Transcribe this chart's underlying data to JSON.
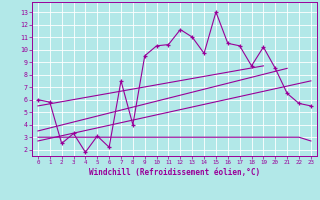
{
  "xlabel": "Windchill (Refroidissement éolien,°C)",
  "background_color": "#b2e8e8",
  "grid_color": "#c8e8e8",
  "line_color": "#990099",
  "x_ticks": [
    0,
    1,
    2,
    3,
    4,
    5,
    6,
    7,
    8,
    9,
    10,
    11,
    12,
    13,
    14,
    15,
    16,
    17,
    18,
    19,
    20,
    21,
    22,
    23
  ],
  "y_ticks": [
    2,
    3,
    4,
    5,
    6,
    7,
    8,
    9,
    10,
    11,
    12,
    13
  ],
  "ylim": [
    1.5,
    13.8
  ],
  "xlim": [
    -0.5,
    23.5
  ],
  "series1_x": [
    0,
    1,
    2,
    3,
    4,
    5,
    6,
    7,
    8,
    9,
    10,
    11,
    12,
    13,
    14,
    15,
    16,
    17,
    18,
    19,
    20,
    21,
    22,
    23
  ],
  "series1_y": [
    6.0,
    5.8,
    2.5,
    3.3,
    1.8,
    3.1,
    2.2,
    7.5,
    4.0,
    9.5,
    10.3,
    10.4,
    11.6,
    11.0,
    9.7,
    13.0,
    10.5,
    10.3,
    8.7,
    10.2,
    8.5,
    6.5,
    5.7,
    5.5
  ],
  "series2_x": [
    0,
    1,
    2,
    3,
    4,
    5,
    6,
    7,
    8,
    9,
    10,
    11,
    12,
    13,
    14,
    15,
    16,
    17,
    18,
    19,
    20,
    21,
    22,
    23
  ],
  "series2_y": [
    3.0,
    3.0,
    3.0,
    3.0,
    3.0,
    3.0,
    3.0,
    3.0,
    3.0,
    3.0,
    3.0,
    3.0,
    3.0,
    3.0,
    3.0,
    3.0,
    3.0,
    3.0,
    3.0,
    3.0,
    3.0,
    3.0,
    3.0,
    2.7
  ],
  "trend1_x": [
    0,
    19
  ],
  "trend1_y": [
    5.5,
    8.7
  ],
  "trend2_x": [
    0,
    21
  ],
  "trend2_y": [
    3.5,
    8.5
  ],
  "trend3_x": [
    0,
    23
  ],
  "trend3_y": [
    2.7,
    7.5
  ]
}
